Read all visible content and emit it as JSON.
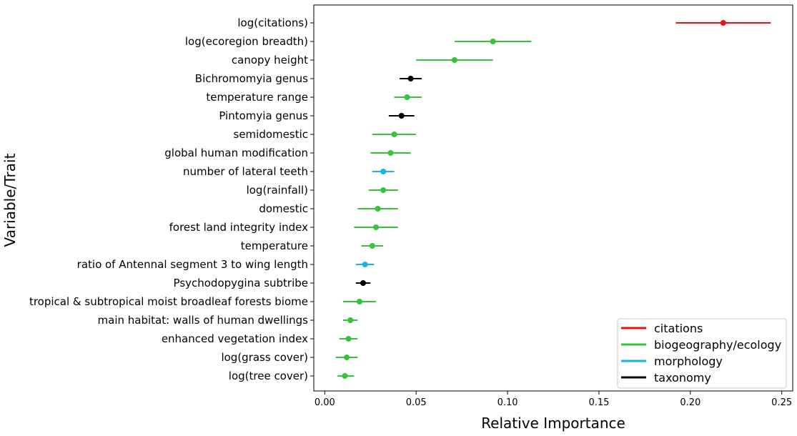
{
  "chart_data": {
    "type": "scatter",
    "title": "",
    "xlabel": "Relative Importance",
    "ylabel": "Variable/Trait",
    "xlim": [
      -0.006,
      0.256
    ],
    "xticks": [
      "0.00",
      "0.05",
      "0.10",
      "0.15",
      "0.20",
      "0.25"
    ],
    "xtick_values": [
      0,
      0.05,
      0.1,
      0.15,
      0.2,
      0.25
    ],
    "grid": false,
    "legend_position": "lower-right",
    "colors": {
      "citations": "#e41212",
      "biogeography/ecology": "#35c33b",
      "morphology": "#14b4e6",
      "taxonomy": "#000000"
    },
    "legend": [
      "citations",
      "biogeography/ecology",
      "morphology",
      "taxonomy"
    ],
    "points": [
      {
        "label": "log(citations)",
        "group": "citations",
        "value": 0.218,
        "low": 0.192,
        "high": 0.244
      },
      {
        "label": "log(ecoregion breadth)",
        "group": "biogeography/ecology",
        "value": 0.092,
        "low": 0.071,
        "high": 0.113
      },
      {
        "label": "canopy height",
        "group": "biogeography/ecology",
        "value": 0.071,
        "low": 0.05,
        "high": 0.092
      },
      {
        "label": "Bichromomyia genus",
        "group": "taxonomy",
        "value": 0.047,
        "low": 0.041,
        "high": 0.053
      },
      {
        "label": "temperature range",
        "group": "biogeography/ecology",
        "value": 0.045,
        "low": 0.038,
        "high": 0.053
      },
      {
        "label": "Pintomyia genus",
        "group": "taxonomy",
        "value": 0.042,
        "low": 0.035,
        "high": 0.049
      },
      {
        "label": "semidomestic",
        "group": "biogeography/ecology",
        "value": 0.038,
        "low": 0.026,
        "high": 0.05
      },
      {
        "label": "global human modification",
        "group": "biogeography/ecology",
        "value": 0.036,
        "low": 0.025,
        "high": 0.047
      },
      {
        "label": "number of lateral teeth",
        "group": "morphology",
        "value": 0.032,
        "low": 0.026,
        "high": 0.038
      },
      {
        "label": "log(rainfall)",
        "group": "biogeography/ecology",
        "value": 0.032,
        "low": 0.024,
        "high": 0.04
      },
      {
        "label": "domestic",
        "group": "biogeography/ecology",
        "value": 0.029,
        "low": 0.018,
        "high": 0.04
      },
      {
        "label": "forest land integrity index",
        "group": "biogeography/ecology",
        "value": 0.028,
        "low": 0.016,
        "high": 0.04
      },
      {
        "label": "temperature",
        "group": "biogeography/ecology",
        "value": 0.026,
        "low": 0.02,
        "high": 0.032
      },
      {
        "label": "ratio of Antennal segment 3 to wing length",
        "group": "morphology",
        "value": 0.022,
        "low": 0.017,
        "high": 0.027
      },
      {
        "label": "Psychodopygina subtribe",
        "group": "taxonomy",
        "value": 0.021,
        "low": 0.017,
        "high": 0.025
      },
      {
        "label": "tropical & subtropical moist broadleaf forests biome",
        "group": "biogeography/ecology",
        "value": 0.019,
        "low": 0.01,
        "high": 0.028
      },
      {
        "label": "main habitat: walls of human dwellings",
        "group": "biogeography/ecology",
        "value": 0.014,
        "low": 0.01,
        "high": 0.018
      },
      {
        "label": "enhanced vegetation index",
        "group": "biogeography/ecology",
        "value": 0.013,
        "low": 0.008,
        "high": 0.018
      },
      {
        "label": "log(grass cover)",
        "group": "biogeography/ecology",
        "value": 0.012,
        "low": 0.006,
        "high": 0.018
      },
      {
        "label": "log(tree cover)",
        "group": "biogeography/ecology",
        "value": 0.011,
        "low": 0.007,
        "high": 0.016
      }
    ]
  }
}
